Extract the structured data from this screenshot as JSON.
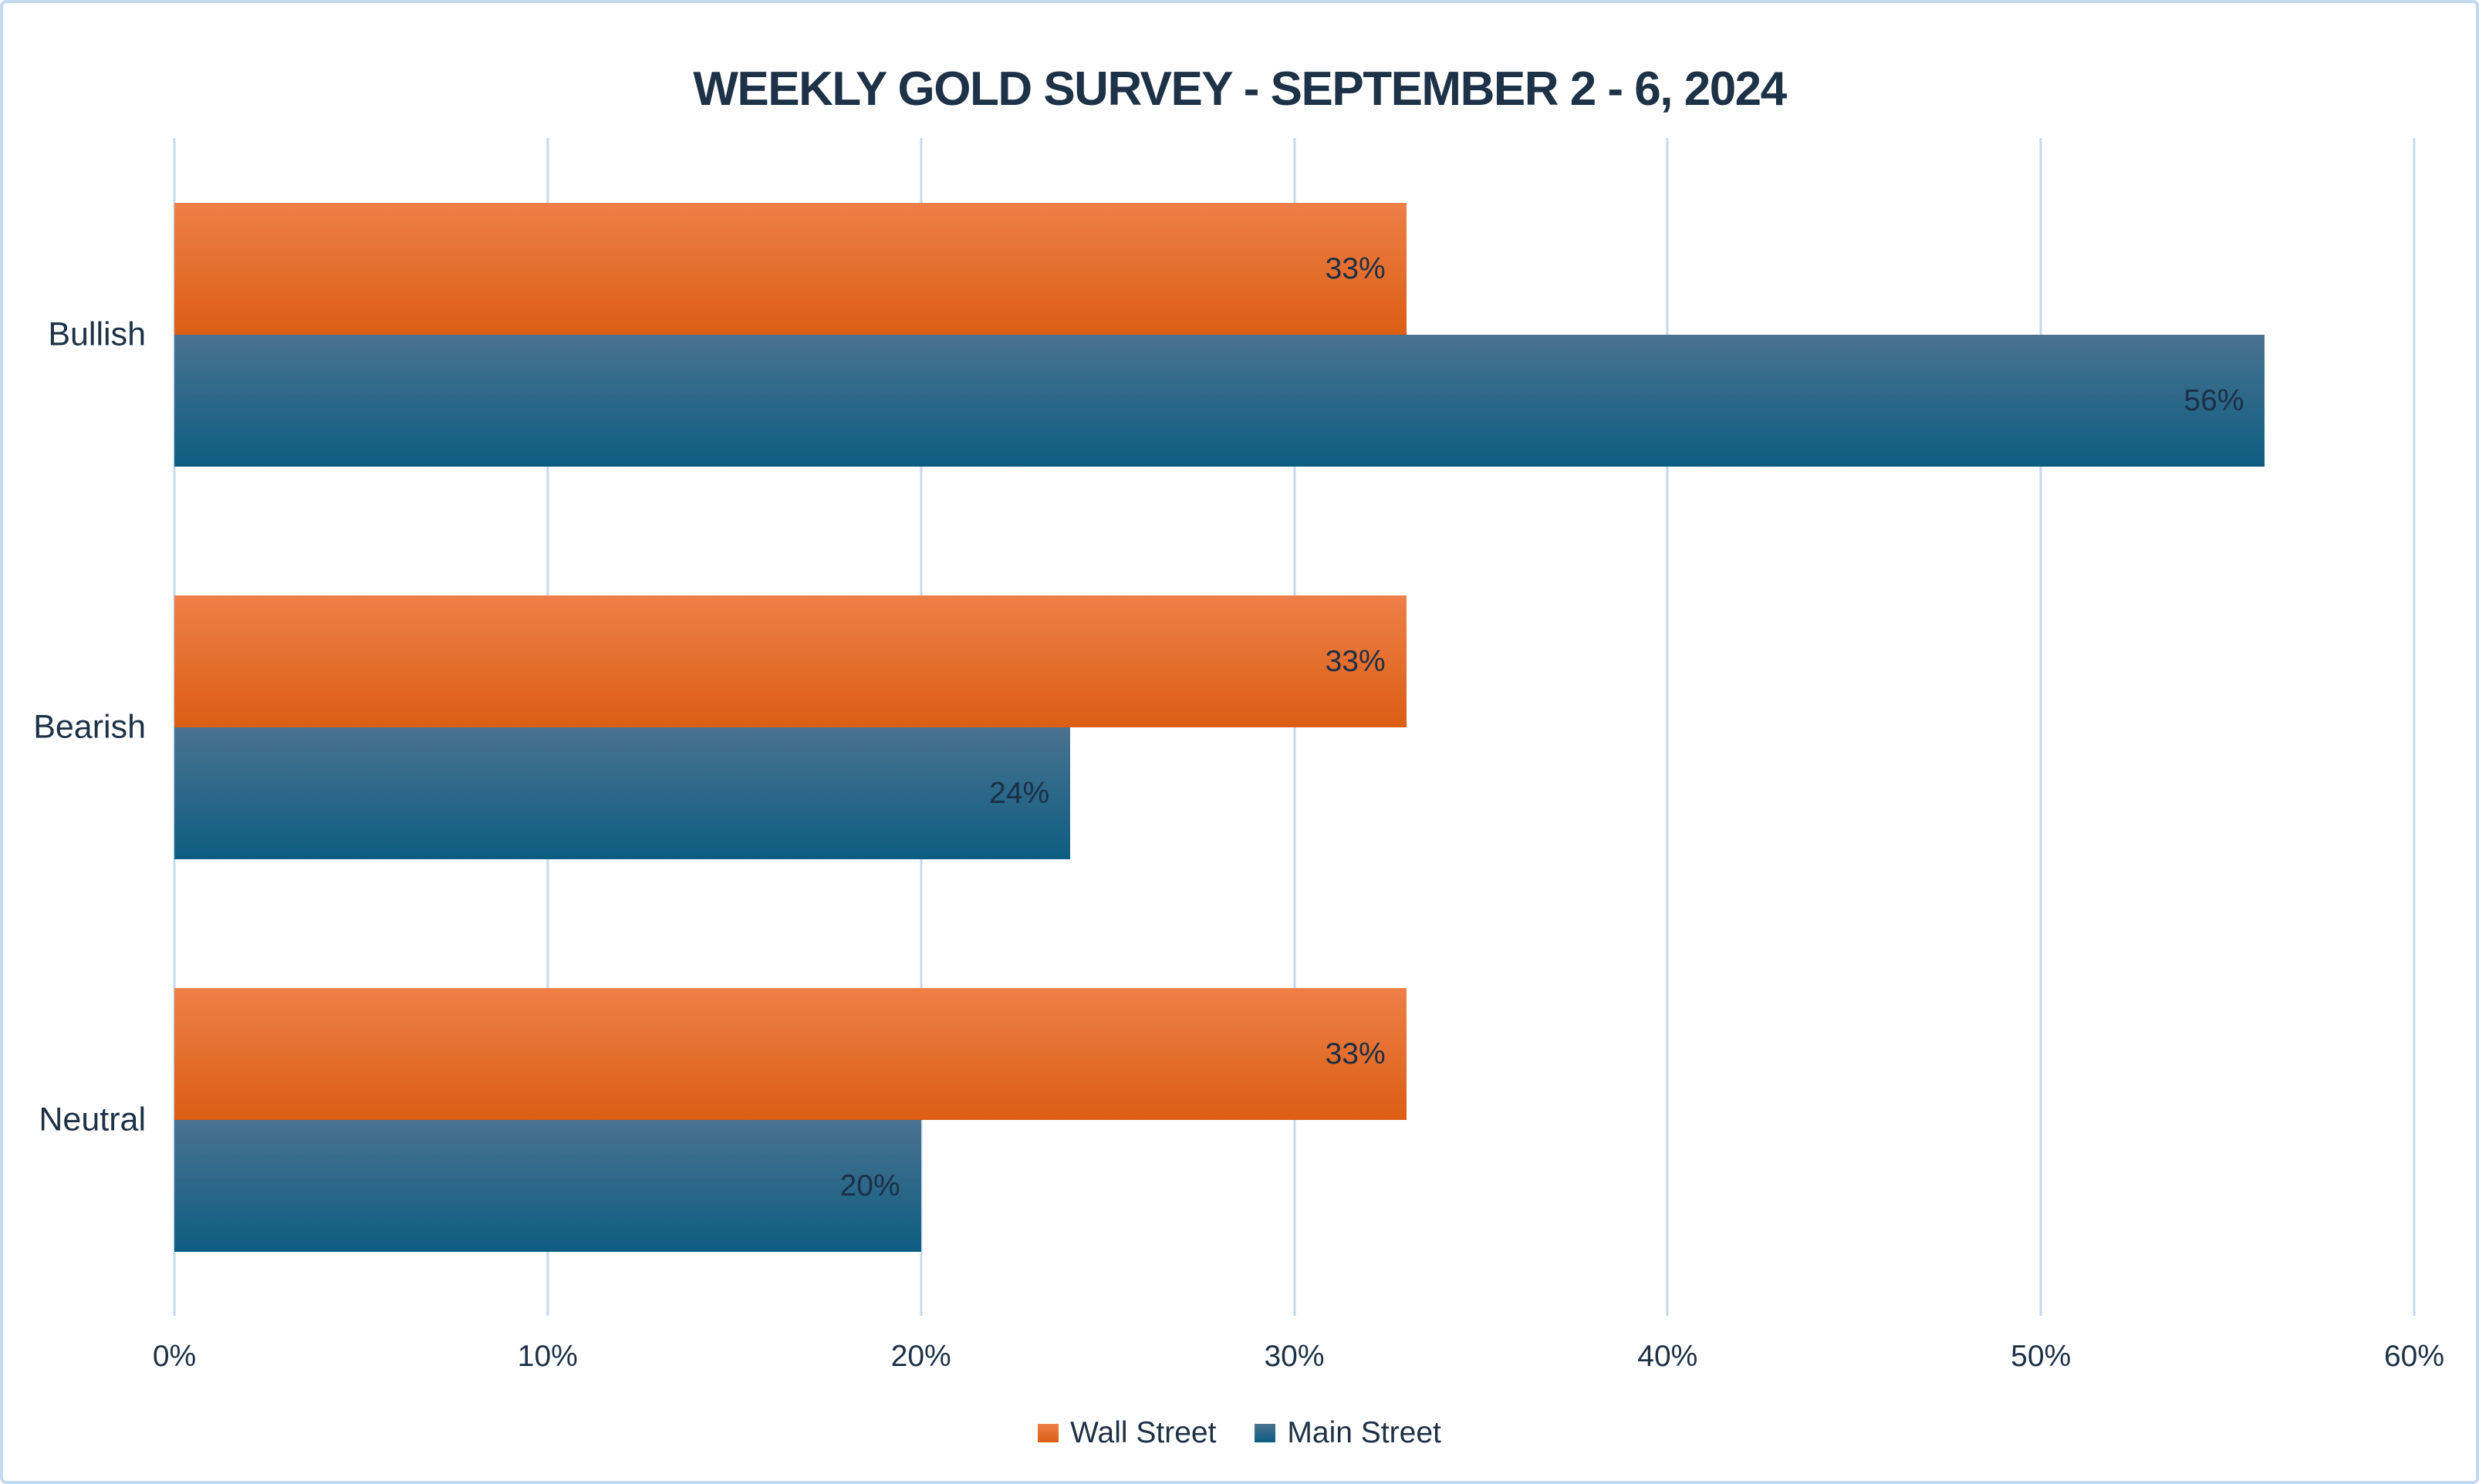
{
  "title": "WEEKLY GOLD SURVEY - SEPTEMBER 2 - 6, 2024",
  "colors": {
    "text": "#1D3147",
    "gridline": "#C4DAEF",
    "canvas_border": "#C3D9EF",
    "background": "#FFFFFF",
    "wall_street_top": "#EE7F48",
    "wall_street_bottom": "#DB5E14",
    "main_street_top": "#4A7290",
    "main_street_bottom": "#0D5D81"
  },
  "chart_data": {
    "type": "bar",
    "orientation": "horizontal",
    "title": "WEEKLY GOLD SURVEY - SEPTEMBER 2 - 6, 2024",
    "categories": [
      "Bullish",
      "Bearish",
      "Neutral"
    ],
    "series": [
      {
        "name": "Wall Street",
        "values": [
          33,
          33,
          33
        ],
        "labels": [
          "33%",
          "33%",
          "33%"
        ],
        "color_top": "#EE7F48",
        "color_bottom": "#DB5E14"
      },
      {
        "name": "Main Street",
        "values": [
          56,
          24,
          20
        ],
        "labels": [
          "56%",
          "24%",
          "20%"
        ],
        "color_top": "#4A7290",
        "color_bottom": "#0D5D81"
      }
    ],
    "xlim": [
      0,
      60
    ],
    "x_ticks": [
      "0%",
      "10%",
      "20%",
      "30%",
      "40%",
      "50%",
      "60%"
    ],
    "x_tick_values": [
      0,
      10,
      20,
      30,
      40,
      50,
      60
    ],
    "grid": true,
    "legend_position": "bottom",
    "legend": [
      "Wall Street",
      "Main Street"
    ]
  }
}
